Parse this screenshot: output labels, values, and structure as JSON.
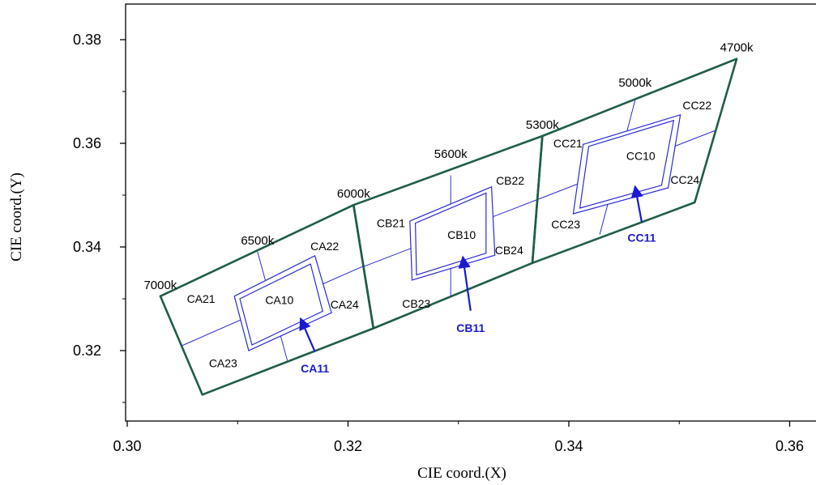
{
  "chart_data": {
    "type": "scatter",
    "xlabel": "CIE coord.(X)",
    "ylabel": "CIE coord.(Y)",
    "xlim": [
      0.3,
      0.362
    ],
    "ylim": [
      0.3066,
      0.3825
    ],
    "x_ticks": [
      "0.30",
      "0.32",
      "0.34",
      "0.36"
    ],
    "y_ticks": [
      "0.32",
      "0.34",
      "0.36",
      "0.38"
    ],
    "colors": {
      "outline": "#1f5d4a",
      "inner": "#2b2bd6",
      "callout": "#1a1ad0"
    },
    "cct_labels": [
      {
        "text": "7000k",
        "x": 0.303,
        "y": 0.3305
      },
      {
        "text": "6500k",
        "x": 0.3118,
        "y": 0.3391
      },
      {
        "text": "6000k",
        "x": 0.3205,
        "y": 0.3481
      },
      {
        "text": "5600k",
        "x": 0.3293,
        "y": 0.3558
      },
      {
        "text": "5300k",
        "x": 0.3376,
        "y": 0.3614
      },
      {
        "text": "5000k",
        "x": 0.346,
        "y": 0.3695
      },
      {
        "text": "4700k",
        "x": 0.3552,
        "y": 0.3763
      }
    ],
    "groups": [
      {
        "name": "CA",
        "outer": [
          [
            0.303,
            0.3305
          ],
          [
            0.3205,
            0.3481
          ],
          [
            0.3223,
            0.3243
          ],
          [
            0.3068,
            0.3115
          ]
        ],
        "lines": [
          [
            [
              0.3118,
              0.3391
            ],
            [
              0.3145,
              0.3181
            ]
          ],
          [
            [
              0.3049,
              0.3209
            ],
            [
              0.3215,
              0.3364
            ]
          ]
        ],
        "squares": [
          [
            [
              0.3097,
              0.3305
            ],
            [
              0.317,
              0.3383
            ],
            [
              0.3185,
              0.3273
            ],
            [
              0.311,
              0.32
            ]
          ],
          [
            [
              0.3102,
              0.33
            ],
            [
              0.3166,
              0.3367
            ],
            [
              0.3177,
              0.3276
            ],
            [
              0.3113,
              0.3211
            ]
          ]
        ],
        "labels": [
          {
            "text": "CA21",
            "x": 0.3054,
            "y": 0.3292
          },
          {
            "text": "CA22",
            "x": 0.3166,
            "y": 0.3394
          },
          {
            "text": "CA10",
            "x": 0.3125,
            "y": 0.329
          },
          {
            "text": "CA24",
            "x": 0.3184,
            "y": 0.3281
          },
          {
            "text": "CA23",
            "x": 0.3074,
            "y": 0.3168
          }
        ],
        "callout": {
          "text": "CA11",
          "from": [
            0.317,
            0.3198
          ],
          "to": [
            0.3157,
            0.3262
          ],
          "label_at": [
            0.317,
            0.3158
          ]
        }
      },
      {
        "name": "CB",
        "outer": [
          [
            0.3205,
            0.3481
          ],
          [
            0.3376,
            0.3614
          ],
          [
            0.3367,
            0.3369
          ],
          [
            0.3223,
            0.3243
          ]
        ],
        "lines": [
          [
            [
              0.3293,
              0.3538
            ],
            [
              0.3293,
              0.3306
            ]
          ],
          [
            [
              0.3214,
              0.3362
            ],
            [
              0.3371,
              0.3491
            ]
          ]
        ],
        "squares": [
          [
            [
              0.3256,
              0.345
            ],
            [
              0.333,
              0.3516
            ],
            [
              0.3333,
              0.3384
            ],
            [
              0.3258,
              0.3336
            ]
          ],
          [
            [
              0.3261,
              0.3446
            ],
            [
              0.3325,
              0.3504
            ],
            [
              0.3325,
              0.3388
            ],
            [
              0.3262,
              0.3346
            ]
          ]
        ],
        "labels": [
          {
            "text": "CB21",
            "x": 0.3226,
            "y": 0.3438
          },
          {
            "text": "CB22",
            "x": 0.3334,
            "y": 0.352
          },
          {
            "text": "CB10",
            "x": 0.329,
            "y": 0.3416
          },
          {
            "text": "CB24",
            "x": 0.3333,
            "y": 0.3386
          },
          {
            "text": "CB23",
            "x": 0.3249,
            "y": 0.3283
          }
        ],
        "callout": {
          "text": "CB11",
          "from": [
            0.3311,
            0.3277
          ],
          "to": [
            0.3304,
            0.3381
          ],
          "label_at": [
            0.3311,
            0.3236
          ]
        }
      },
      {
        "name": "CC",
        "outer": [
          [
            0.3376,
            0.3614
          ],
          [
            0.3552,
            0.3763
          ],
          [
            0.3514,
            0.3486
          ],
          [
            0.3367,
            0.3369
          ]
        ],
        "lines": [
          [
            [
              0.346,
              0.3683
            ],
            [
              0.3428,
              0.3424
            ]
          ],
          [
            [
              0.3371,
              0.3491
            ],
            [
              0.3533,
              0.3625
            ]
          ]
        ],
        "squares": [
          [
            [
              0.3413,
              0.3598
            ],
            [
              0.3501,
              0.3655
            ],
            [
              0.349,
              0.3514
            ],
            [
              0.3404,
              0.3464
            ]
          ],
          [
            [
              0.3418,
              0.3594
            ],
            [
              0.3495,
              0.3644
            ],
            [
              0.3484,
              0.3519
            ],
            [
              0.341,
              0.3475
            ]
          ]
        ],
        "labels": [
          {
            "text": "CC21",
            "x": 0.3386,
            "y": 0.3592
          },
          {
            "text": "CC22",
            "x": 0.3503,
            "y": 0.3666
          },
          {
            "text": "CC10",
            "x": 0.3452,
            "y": 0.3568
          },
          {
            "text": "CC24",
            "x": 0.3492,
            "y": 0.3522
          },
          {
            "text": "CC23",
            "x": 0.3384,
            "y": 0.3436
          }
        ],
        "callout": {
          "text": "CC11",
          "from": [
            0.3466,
            0.3448
          ],
          "to": [
            0.346,
            0.3517
          ],
          "label_at": [
            0.3466,
            0.341
          ]
        }
      }
    ]
  }
}
